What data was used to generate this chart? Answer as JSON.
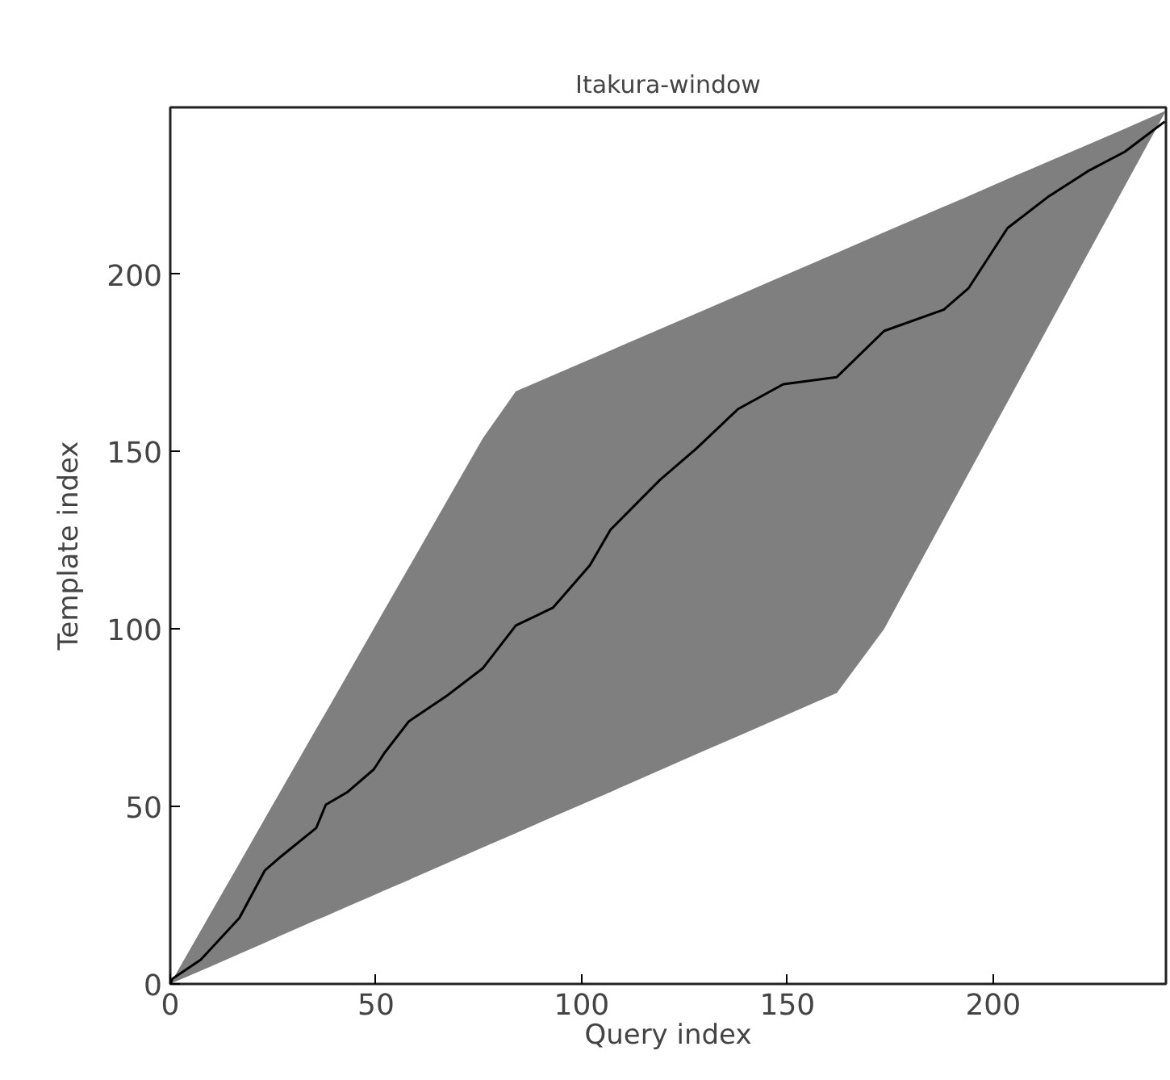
{
  "chart_data": {
    "type": "line",
    "title": "Itakura-window",
    "xlabel": "Query index",
    "ylabel": "Template index",
    "xlim": [
      0,
      242
    ],
    "ylim": [
      0,
      247
    ],
    "xticks": [
      0,
      50,
      100,
      150,
      200
    ],
    "yticks": [
      0,
      50,
      100,
      150,
      200
    ],
    "grid": false,
    "series": [
      {
        "color": "#000000",
        "x": [
          0,
          0.5,
          7.4,
          16.8,
          23,
          27,
          35.5,
          37.8,
          43,
          49.5,
          52,
          58,
          67,
          76,
          84,
          93,
          102,
          107,
          119,
          128,
          138,
          149,
          162,
          173.5,
          188,
          194,
          203.5,
          213.6,
          223,
          232,
          241.7
        ],
        "values": [
          0,
          1.4,
          6.8,
          18.6,
          32,
          36,
          44,
          50.5,
          54,
          60.5,
          65,
          74,
          81,
          89,
          101,
          106,
          118,
          128,
          142,
          151,
          162,
          169,
          171,
          184,
          190,
          196,
          213,
          222,
          229,
          234.5,
          243
        ],
        "upper": [
          0,
          1,
          15,
          34,
          46.6,
          54.7,
          71.9,
          76.5,
          87,
          100.2,
          105.3,
          117.4,
          135.6,
          153.8,
          167,
          171.5,
          176,
          178.5,
          184.5,
          189,
          194,
          199.5,
          206,
          211.8,
          219,
          222,
          226.8,
          231.8,
          236.5,
          241,
          245.9
        ],
        "lower": [
          0,
          0.3,
          3.7,
          8.5,
          11.6,
          13.7,
          18,
          19.1,
          21.8,
          25,
          26.3,
          29.3,
          33.9,
          38.5,
          42.5,
          47.1,
          51.6,
          54.1,
          60.2,
          64.8,
          69.8,
          75.4,
          82,
          100,
          131,
          143.8,
          164,
          185.6,
          205.7,
          224.8,
          245.4
        ]
      }
    ]
  }
}
